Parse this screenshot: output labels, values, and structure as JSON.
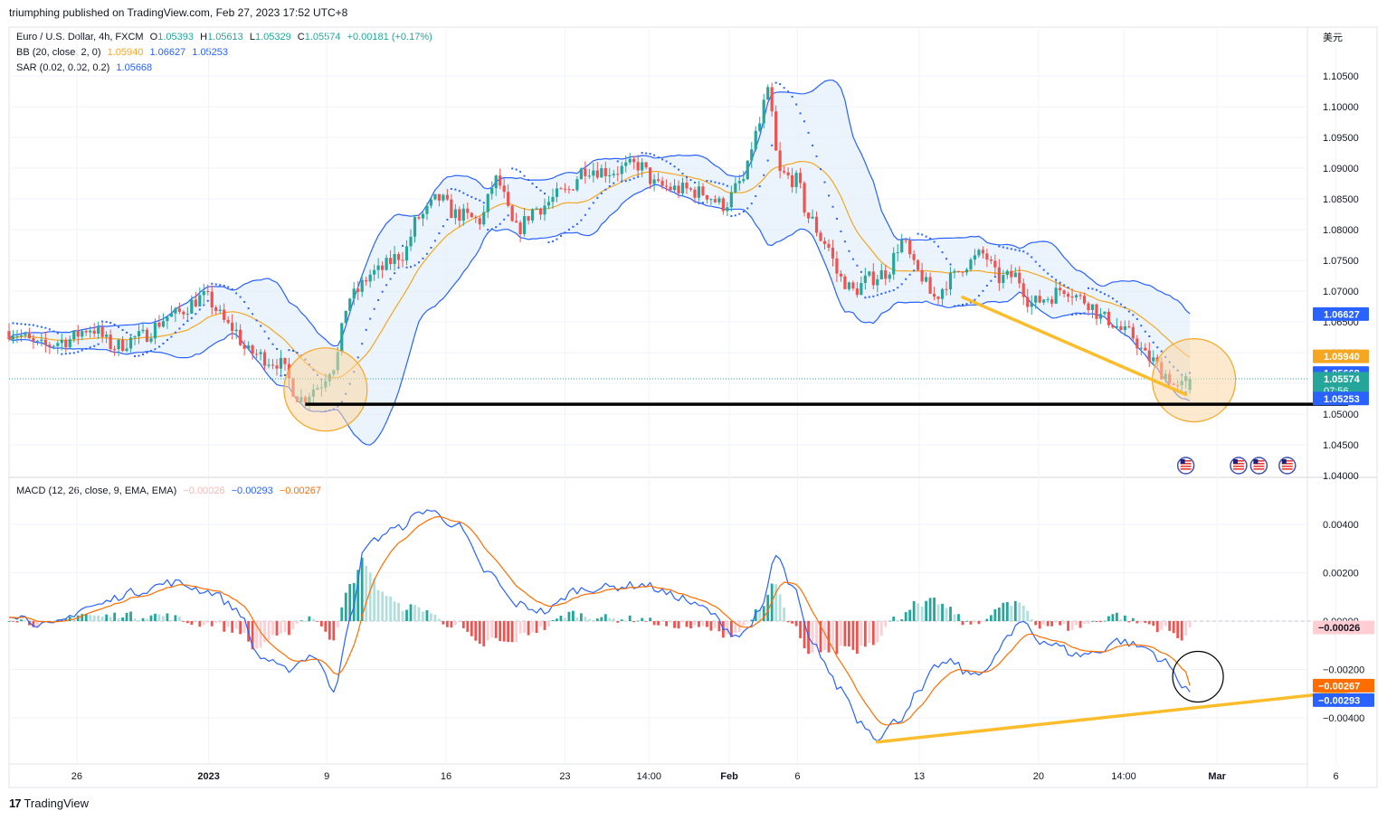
{
  "header": {
    "publisher_line": "triumphing published on TradingView.com, Feb 27, 2023 17:52 UTC+8"
  },
  "footer": {
    "brand": "TradingView",
    "brand_mark": "17"
  },
  "currency_label": "美元",
  "legend": {
    "symbol": "Euro / U.S. Dollar, 4h, FXCM",
    "open_label": "O",
    "open": "1.05393",
    "high_label": "H",
    "high": "1.05613",
    "low_label": "L",
    "low": "1.05329",
    "close_label": "C",
    "close": "1.05574",
    "change": "+0.00181 (+0.17%)",
    "bb_label": "BB (20, close, 2, 0)",
    "bb_basis": "1.05940",
    "bb_upper": "1.06627",
    "bb_lower": "1.05253",
    "sar_label": "SAR (0.02, 0.02, 0.2)",
    "sar_value": "1.05668",
    "macd_label": "MACD (12, 26, close, 9, EMA, EMA)",
    "macd_hist": "−0.00026",
    "macd_line": "−0.00293",
    "macd_signal": "−0.00267"
  },
  "colors": {
    "up": "#26a69a",
    "down": "#ef5350",
    "bb_band": "#2962ff",
    "bb_basis": "#f5a623",
    "bb_fill": "#e3effb",
    "sar": "#2962ff",
    "macd": "#2962ff",
    "signal": "#ff6d00",
    "hist_up_strong": "#26a69a",
    "hist_up_weak": "#b2dfdb",
    "hist_down_strong": "#ef5350",
    "hist_down_weak": "#ffcdd2",
    "trendline": "#fbbd2c",
    "support": "#000000",
    "highlight_fill": "#fbd7a4",
    "highlight_stroke": "#f5a623"
  },
  "chart_data": [
    {
      "type": "candlestick",
      "title": "Euro / U.S. Dollar, 4h, FXCM",
      "ylim": [
        1.04,
        1.1065
      ],
      "y_ticks": [
        "1.10500",
        "1.10000",
        "1.09500",
        "1.09000",
        "1.08500",
        "1.08000",
        "1.07500",
        "1.07000",
        "1.06500",
        "1.06000",
        "1.05500",
        "1.05000",
        "1.04500",
        "1.04000"
      ],
      "x_ticks": [
        "26",
        "2023",
        "9",
        "16",
        "23",
        "14:00",
        "Feb",
        "6",
        "13",
        "20",
        "14:00",
        "Mar",
        "6"
      ],
      "x_tick_positions_bar": [
        16.7,
        49.2,
        78.3,
        107.7,
        137.0,
        157.7,
        177.5,
        194.3,
        224.3,
        253.7,
        274.7,
        297.7,
        327.0
      ],
      "bar_count": 292,
      "price_anchors": [
        [
          0,
          1.0635
        ],
        [
          8,
          1.061
        ],
        [
          14,
          1.062
        ],
        [
          20,
          1.064
        ],
        [
          26,
          1.061
        ],
        [
          32,
          1.0625
        ],
        [
          40,
          1.066
        ],
        [
          48,
          1.069
        ],
        [
          55,
          1.064
        ],
        [
          59,
          1.06
        ],
        [
          66,
          1.0585
        ],
        [
          72,
          1.0525
        ],
        [
          76,
          1.0545
        ],
        [
          80,
          1.058
        ],
        [
          84,
          1.069
        ],
        [
          90,
          1.073
        ],
        [
          97,
          1.076
        ],
        [
          101,
          1.082
        ],
        [
          106,
          1.085
        ],
        [
          110,
          1.0825
        ],
        [
          116,
          1.0815
        ],
        [
          120,
          1.088
        ],
        [
          125,
          1.08
        ],
        [
          130,
          1.0835
        ],
        [
          137,
          1.086
        ],
        [
          142,
          1.09
        ],
        [
          148,
          1.0895
        ],
        [
          155,
          1.0905
        ],
        [
          160,
          1.087
        ],
        [
          166,
          1.0865
        ],
        [
          171,
          1.086
        ],
        [
          176,
          1.084
        ],
        [
          181,
          1.088
        ],
        [
          184,
          1.0955
        ],
        [
          187,
          1.102
        ],
        [
          190,
          1.089
        ],
        [
          194,
          1.088
        ],
        [
          197,
          1.082
        ],
        [
          201,
          1.078
        ],
        [
          205,
          1.072
        ],
        [
          208,
          1.07
        ],
        [
          212,
          1.072
        ],
        [
          216,
          1.073
        ],
        [
          220,
          1.078
        ],
        [
          224,
          1.073
        ],
        [
          228,
          1.069
        ],
        [
          232,
          1.072
        ],
        [
          236,
          1.0745
        ],
        [
          240,
          1.076
        ],
        [
          244,
          1.072
        ],
        [
          248,
          1.0725
        ],
        [
          252,
          1.068
        ],
        [
          256,
          1.069
        ],
        [
          260,
          1.0705
        ],
        [
          265,
          1.0685
        ],
        [
          270,
          1.0655
        ],
        [
          276,
          1.063
        ],
        [
          281,
          1.059
        ],
        [
          285,
          1.0565
        ],
        [
          288,
          1.054
        ],
        [
          291,
          1.05574
        ]
      ],
      "last": {
        "open": 1.05393,
        "high": 1.05613,
        "low": 1.05329,
        "close": 1.05574
      },
      "bollinger": {
        "period": 20,
        "mult": 2,
        "basis": 1.0594,
        "upper": 1.06627,
        "lower": 1.05253
      },
      "sar": {
        "step": 0.02,
        "max": 0.2,
        "last": 1.05668
      },
      "price_labels": [
        {
          "value": 1.06627,
          "text": "1.06627",
          "color": "#2962ff"
        },
        {
          "value": 1.0594,
          "text": "1.05940",
          "color": "#f5a623"
        },
        {
          "value": 1.05668,
          "text": "1.05668",
          "color": "#2962ff"
        },
        {
          "value": 1.05574,
          "text": "1.05574",
          "countdown": "07:56",
          "color": "#26a69a"
        },
        {
          "value": 1.05253,
          "text": "1.05253",
          "color": "#2962ff"
        }
      ],
      "annotations": {
        "support_line": {
          "value": 1.0516,
          "from_bar": 73,
          "to_bar": 330
        },
        "trendline": {
          "from": [
            235,
            1.069
          ],
          "to": [
            290,
            1.0532
          ]
        },
        "circles": [
          {
            "bar": 78,
            "price": 1.054
          },
          {
            "bar": 292,
            "price": 1.0555
          }
        ],
        "event_flags": [
          290,
          303,
          308,
          315
        ]
      }
    },
    {
      "type": "macd",
      "title": "MACD (12, 26, close, 9, EMA, EMA)",
      "ylim": [
        -0.0055,
        0.0055
      ],
      "y_ticks": [
        "0.00400",
        "0.00200",
        "0.00000",
        "−0.00200",
        "−0.00400"
      ],
      "last": {
        "histogram": -0.00026,
        "macd": -0.00293,
        "signal": -0.00267
      },
      "macd_anchors": [
        [
          0,
          0.0003
        ],
        [
          10,
          -0.0002
        ],
        [
          20,
          0.0006
        ],
        [
          31,
          0.0012
        ],
        [
          40,
          0.0016
        ],
        [
          50,
          0.0012
        ],
        [
          56,
          0.0005
        ],
        [
          62,
          -0.0015
        ],
        [
          68,
          -0.002
        ],
        [
          75,
          -0.0014
        ],
        [
          80,
          -0.0028
        ],
        [
          84,
          0.0
        ],
        [
          88,
          0.0032
        ],
        [
          95,
          0.0038
        ],
        [
          103,
          0.0046
        ],
        [
          110,
          0.004
        ],
        [
          118,
          0.002
        ],
        [
          125,
          0.0007
        ],
        [
          132,
          0.0004
        ],
        [
          140,
          0.0013
        ],
        [
          148,
          0.0014
        ],
        [
          156,
          0.0015
        ],
        [
          165,
          0.001
        ],
        [
          170,
          0.0006
        ],
        [
          180,
          -0.0006
        ],
        [
          185,
          0.0003
        ],
        [
          189,
          0.0027
        ],
        [
          193,
          0.0014
        ],
        [
          198,
          -0.001
        ],
        [
          205,
          -0.0028
        ],
        [
          210,
          -0.0042
        ],
        [
          214,
          -0.0048
        ],
        [
          219,
          -0.0041
        ],
        [
          224,
          -0.003
        ],
        [
          229,
          -0.0018
        ],
        [
          233,
          -0.0017
        ],
        [
          236,
          -0.0022
        ],
        [
          241,
          -0.002
        ],
        [
          246,
          -0.0007
        ],
        [
          250,
          0.0
        ],
        [
          254,
          -0.0008
        ],
        [
          258,
          -0.001
        ],
        [
          263,
          -0.0014
        ],
        [
          268,
          -0.0013
        ],
        [
          273,
          -0.0008
        ],
        [
          280,
          -0.0011
        ],
        [
          285,
          -0.0017
        ],
        [
          289,
          -0.0026
        ],
        [
          292,
          -0.00293
        ]
      ],
      "annotations": {
        "trendline": {
          "from": [
            214,
            -0.005
          ],
          "to": [
            330,
            -0.0029
          ]
        },
        "circle": {
          "bar": 293,
          "value": -0.0023
        }
      }
    }
  ]
}
